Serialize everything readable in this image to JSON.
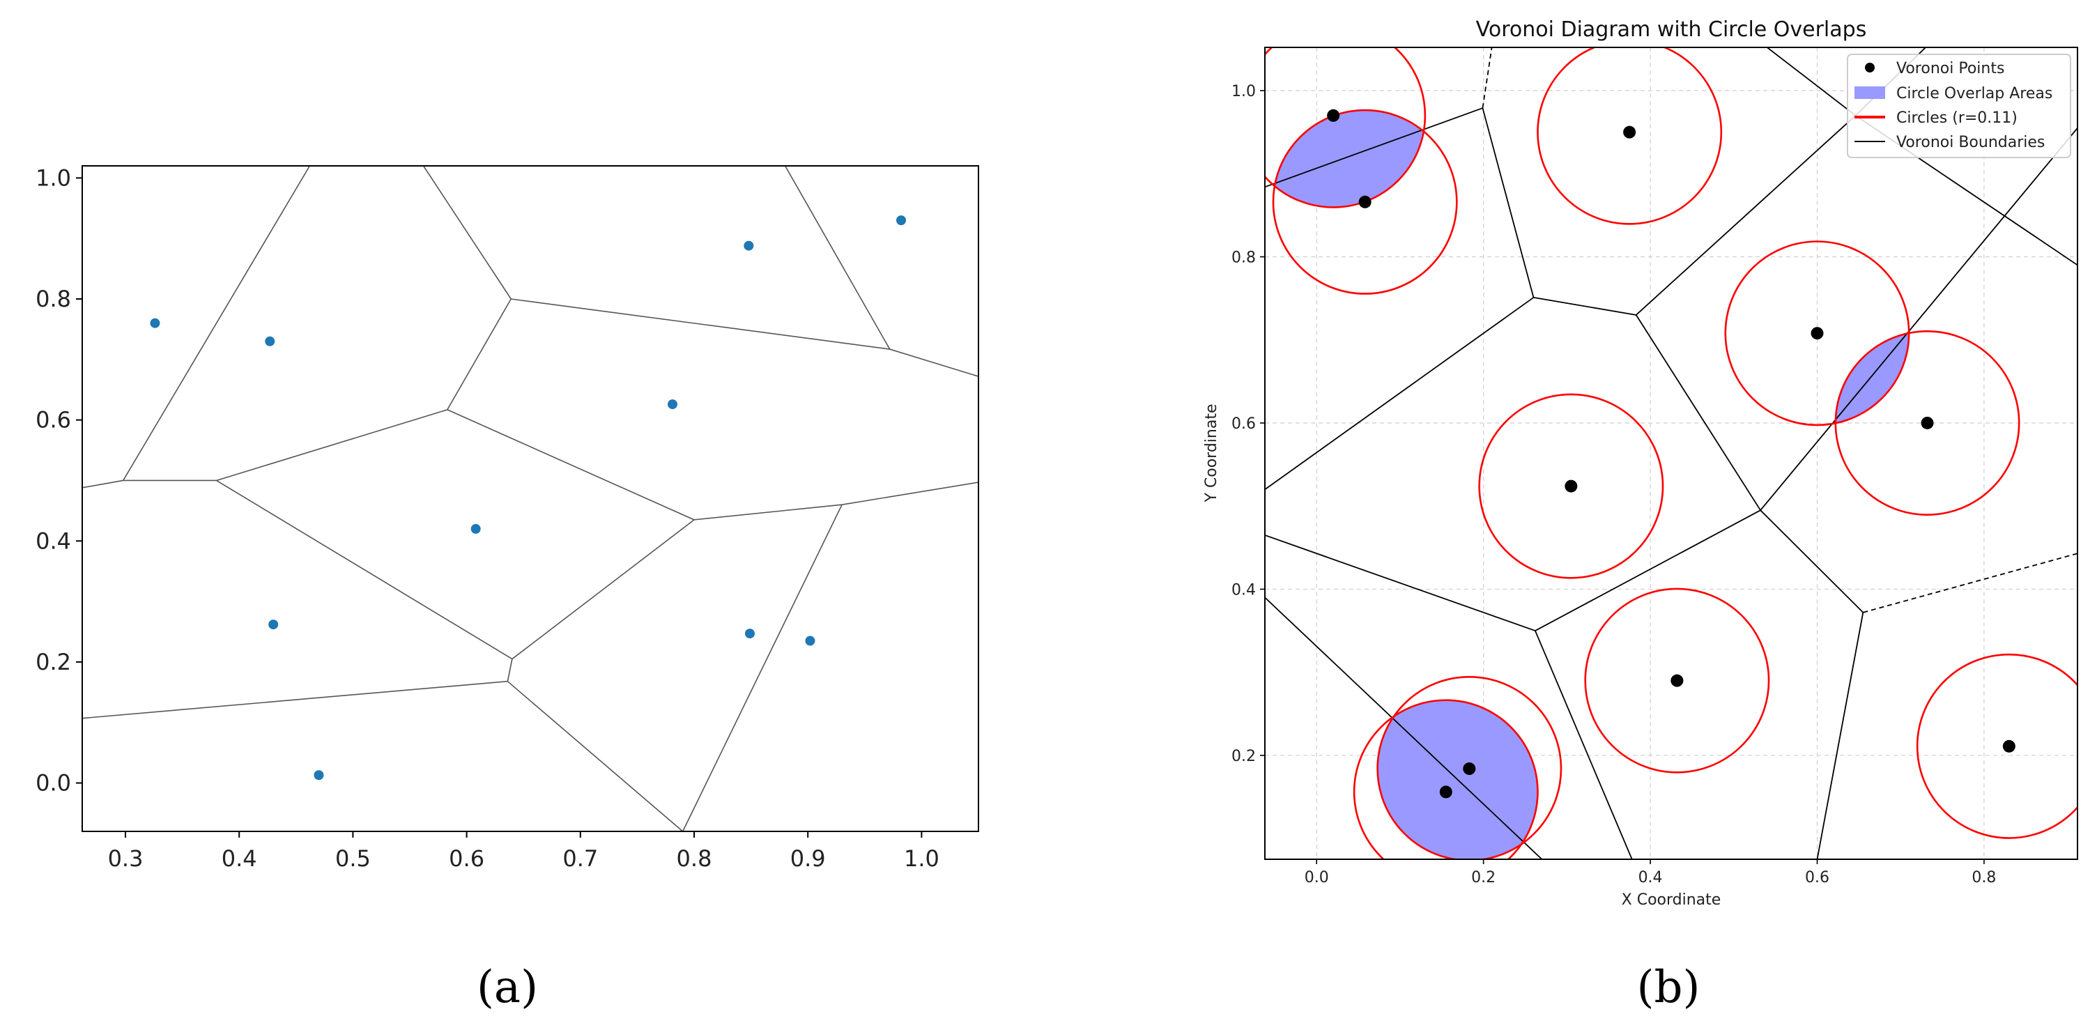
{
  "captions": {
    "a": "(a)",
    "b": "(b)"
  },
  "chart_data": [
    {
      "type": "scatter",
      "panel": "a",
      "title": "",
      "xlabel": "",
      "ylabel": "",
      "xlim": [
        0.262,
        1.05
      ],
      "ylim": [
        -0.08,
        1.02
      ],
      "xticks": [
        "0.3",
        "0.4",
        "0.5",
        "0.6",
        "0.7",
        "0.8",
        "0.9",
        "1.0"
      ],
      "yticks": [
        "0.0",
        "0.2",
        "0.4",
        "0.6",
        "0.8",
        "1.0"
      ],
      "xtick_values": [
        0.3,
        0.4,
        0.5,
        0.6,
        0.7,
        0.8,
        0.9,
        1.0
      ],
      "ytick_values": [
        0.0,
        0.2,
        0.4,
        0.6,
        0.8,
        1.0
      ],
      "point_color": "#1f77b4",
      "edge_color": "#555555",
      "points": [
        [
          0.326,
          0.76
        ],
        [
          0.427,
          0.73
        ],
        [
          0.848,
          0.888
        ],
        [
          0.982,
          0.93
        ],
        [
          0.781,
          0.626
        ],
        [
          0.608,
          0.42
        ],
        [
          0.43,
          0.262
        ],
        [
          0.849,
          0.247
        ],
        [
          0.902,
          0.235
        ],
        [
          0.47,
          0.013
        ]
      ],
      "vertices": [
        [
          0.298,
          0.5
        ],
        [
          0.38,
          0.5
        ],
        [
          0.583,
          0.617
        ],
        [
          0.639,
          0.8
        ],
        [
          0.972,
          0.717
        ],
        [
          0.8,
          0.435
        ],
        [
          0.93,
          0.46
        ],
        [
          0.64,
          0.205
        ],
        [
          0.636,
          0.168
        ],
        [
          0.79,
          -0.08
        ]
      ],
      "edges": [
        [
          [
            0.262,
            0.488
          ],
          [
            0.298,
            0.5
          ]
        ],
        [
          [
            0.298,
            0.5
          ],
          [
            0.38,
            0.5
          ]
        ],
        [
          [
            0.298,
            0.5
          ],
          [
            0.462,
            1.02
          ]
        ],
        [
          [
            0.38,
            0.5
          ],
          [
            0.583,
            0.617
          ]
        ],
        [
          [
            0.583,
            0.617
          ],
          [
            0.639,
            0.8
          ]
        ],
        [
          [
            0.639,
            0.8
          ],
          [
            0.562,
            1.02
          ]
        ],
        [
          [
            0.639,
            0.8
          ],
          [
            0.972,
            0.717
          ]
        ],
        [
          [
            0.972,
            0.717
          ],
          [
            0.88,
            1.02
          ]
        ],
        [
          [
            0.972,
            0.717
          ],
          [
            1.05,
            0.672
          ]
        ],
        [
          [
            0.583,
            0.617
          ],
          [
            0.8,
            0.435
          ]
        ],
        [
          [
            0.8,
            0.435
          ],
          [
            0.93,
            0.46
          ]
        ],
        [
          [
            0.93,
            0.46
          ],
          [
            1.05,
            0.497
          ]
        ],
        [
          [
            0.93,
            0.46
          ],
          [
            0.79,
            -0.08
          ]
        ],
        [
          [
            0.8,
            0.435
          ],
          [
            0.64,
            0.205
          ]
        ],
        [
          [
            0.38,
            0.5
          ],
          [
            0.64,
            0.205
          ]
        ],
        [
          [
            0.64,
            0.205
          ],
          [
            0.636,
            0.168
          ]
        ],
        [
          [
            0.636,
            0.168
          ],
          [
            0.262,
            0.107
          ]
        ],
        [
          [
            0.636,
            0.168
          ],
          [
            0.79,
            -0.08
          ]
        ]
      ]
    },
    {
      "type": "scatter",
      "panel": "b",
      "title": "Voronoi Diagram with Circle Overlaps",
      "xlabel": "X Coordinate",
      "ylabel": "Y Coordinate",
      "xlim": [
        -0.062,
        0.912
      ],
      "ylim": [
        0.075,
        1.052
      ],
      "xticks": [
        "0.0",
        "0.2",
        "0.4",
        "0.6",
        "0.8"
      ],
      "yticks": [
        "0.2",
        "0.4",
        "0.6",
        "0.8",
        "1.0"
      ],
      "xtick_values": [
        0.0,
        0.2,
        0.4,
        0.6,
        0.8
      ],
      "ytick_values": [
        0.2,
        0.4,
        0.6,
        0.8,
        1.0
      ],
      "grid": true,
      "circle_radius": 0.11,
      "point_color": "#000000",
      "circle_color": "#ff0000",
      "overlap_color": "#9999ff",
      "boundary_color": "#000000",
      "points": [
        [
          0.02,
          0.97
        ],
        [
          0.058,
          0.866
        ],
        [
          0.375,
          0.95
        ],
        [
          0.6,
          0.708
        ],
        [
          0.732,
          0.6
        ],
        [
          0.305,
          0.524
        ],
        [
          0.432,
          0.29
        ],
        [
          0.155,
          0.156
        ],
        [
          0.183,
          0.184
        ],
        [
          0.83,
          0.211
        ]
      ],
      "overlaps": [
        {
          "a": [
            0.02,
            0.97
          ],
          "b": [
            0.058,
            0.866
          ]
        },
        {
          "a": [
            0.6,
            0.708
          ],
          "b": [
            0.732,
            0.6
          ]
        },
        {
          "a": [
            0.155,
            0.156
          ],
          "b": [
            0.183,
            0.184
          ]
        }
      ],
      "edges": [
        [
          [
            -0.062,
            0.884
          ],
          [
            0.199,
            0.979
          ]
        ],
        [
          [
            0.199,
            0.979
          ],
          [
            0.26,
            0.751
          ]
        ],
        [
          [
            0.26,
            0.751
          ],
          [
            0.383,
            0.73
          ]
        ],
        [
          [
            0.383,
            0.73
          ],
          [
            0.646,
            0.97
          ]
        ],
        [
          [
            0.646,
            0.97
          ],
          [
            0.73,
            1.052
          ]
        ],
        [
          [
            0.646,
            0.97
          ],
          [
            0.912,
            0.79
          ]
        ],
        [
          [
            0.646,
            0.97
          ],
          [
            0.54,
            1.052
          ]
        ],
        [
          [
            0.26,
            0.751
          ],
          [
            -0.062,
            0.52
          ]
        ],
        [
          [
            0.383,
            0.73
          ],
          [
            0.532,
            0.495
          ]
        ],
        [
          [
            0.532,
            0.495
          ],
          [
            0.912,
            0.955
          ]
        ],
        [
          [
            0.532,
            0.495
          ],
          [
            0.262,
            0.35
          ]
        ],
        [
          [
            0.532,
            0.495
          ],
          [
            0.655,
            0.372
          ]
        ],
        [
          [
            0.262,
            0.35
          ],
          [
            -0.062,
            0.465
          ]
        ],
        [
          [
            0.262,
            0.35
          ],
          [
            0.378,
            0.075
          ]
        ],
        [
          [
            0.655,
            0.372
          ],
          [
            0.6,
            0.075
          ]
        ],
        [
          [
            -0.062,
            0.39
          ],
          [
            0.27,
            0.075
          ]
        ]
      ],
      "dashed_edges": [
        [
          [
            0.199,
            0.979
          ],
          [
            0.21,
            1.052
          ]
        ],
        [
          [
            0.655,
            0.372
          ],
          [
            0.912,
            0.443
          ]
        ]
      ],
      "legend": {
        "placement": "top-right",
        "items": [
          {
            "kind": "marker",
            "label": "Voronoi Points"
          },
          {
            "kind": "patch",
            "label": "Circle Overlap Areas"
          },
          {
            "kind": "redline",
            "label": "Circles (r=0.11)"
          },
          {
            "kind": "blackline",
            "label": "Voronoi Boundaries"
          }
        ]
      }
    }
  ]
}
